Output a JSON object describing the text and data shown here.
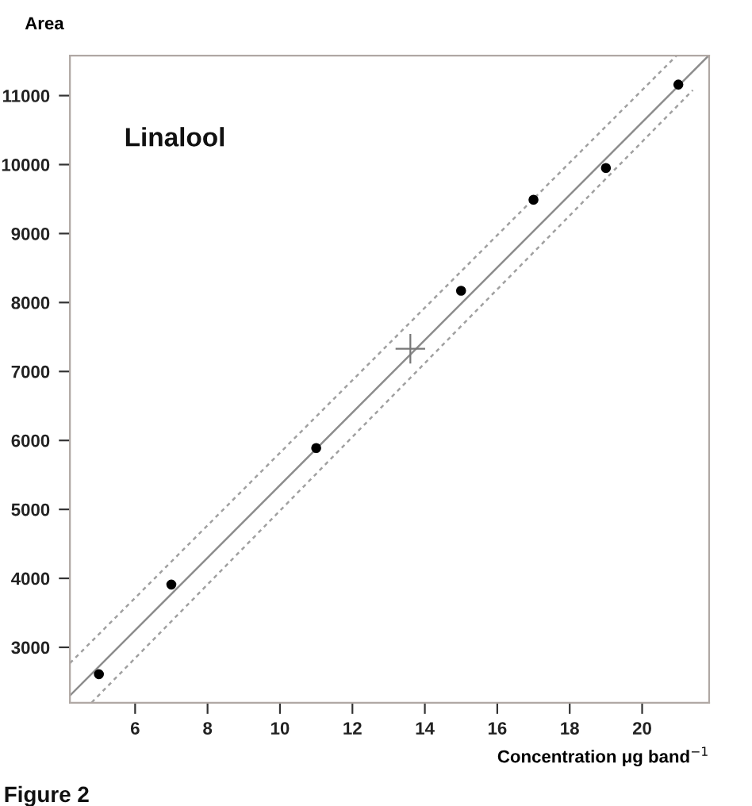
{
  "chart_data": {
    "type": "scatter",
    "xlabel": "Concentration μg band$^{−1}$",
    "ylabel": "Area",
    "annotations": [
      "Linalool",
      "Figure 2"
    ],
    "xlim": [
      4.2,
      21.85
    ],
    "ylim": [
      2195,
      11580
    ],
    "xticks": [
      6,
      8,
      10,
      12,
      14,
      16,
      18,
      20
    ],
    "yticks": [
      3000,
      4000,
      5000,
      6000,
      7000,
      8000,
      9000,
      10000,
      11000
    ],
    "grid": false,
    "legend": false,
    "series": [
      {
        "color": "#000000",
        "marker": "circle",
        "x": [
          5,
          7,
          11,
          15,
          17,
          19,
          21
        ],
        "values": [
          2610,
          3910,
          5890,
          8170,
          9490,
          9950,
          11160
        ]
      },
      {
        "type": "line",
        "color": "#8c8c8c",
        "line_style": "solid",
        "x": [
          4.2,
          21.8
        ],
        "values": [
          2300,
          11560
        ]
      },
      {
        "type": "line",
        "color": "#a0a0a0",
        "line_style": "dotted",
        "x": [
          4.2,
          20.95
        ],
        "values": [
          2770,
          11580
        ]
      },
      {
        "type": "line",
        "color": "#a0a0a0",
        "line_style": "dotted",
        "x": [
          4.8,
          21.4
        ],
        "values": [
          2200,
          11080
        ]
      },
      {
        "color": "#777777",
        "marker": "cross",
        "x": [
          13.6
        ],
        "values": [
          7330
        ]
      }
    ]
  }
}
